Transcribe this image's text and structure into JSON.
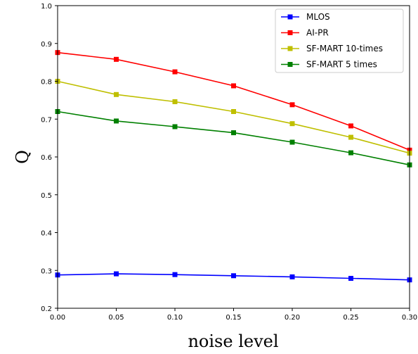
{
  "chart_data": {
    "type": "line",
    "xlabel": "noise level",
    "ylabel": "Q",
    "x": [
      0.0,
      0.05,
      0.1,
      0.15,
      0.2,
      0.25,
      0.3
    ],
    "xlim": [
      0.0,
      0.3
    ],
    "ylim": [
      0.2,
      1.0
    ],
    "x_ticks": [
      "0.00",
      "0.05",
      "0.10",
      "0.15",
      "0.20",
      "0.25",
      "0.30"
    ],
    "y_ticks": [
      "0.2",
      "0.3",
      "0.4",
      "0.5",
      "0.6",
      "0.7",
      "0.8",
      "0.9",
      "1.0"
    ],
    "x_tick_values": [
      0.0,
      0.05,
      0.1,
      0.15,
      0.2,
      0.25,
      0.3
    ],
    "y_tick_values": [
      0.2,
      0.3,
      0.4,
      0.5,
      0.6,
      0.7,
      0.8,
      0.9,
      1.0
    ],
    "grid": false,
    "legend_position": "top-right",
    "series": [
      {
        "name": "MLOS",
        "color": "#0000ff",
        "marker": "square",
        "values": [
          0.288,
          0.291,
          0.289,
          0.286,
          0.283,
          0.279,
          0.275
        ]
      },
      {
        "name": "AI-PR",
        "color": "#ff0000",
        "marker": "square",
        "values": [
          0.876,
          0.858,
          0.825,
          0.788,
          0.738,
          0.682,
          0.618
        ]
      },
      {
        "name": "SF-MART 10-times",
        "color": "#bfbf00",
        "marker": "square",
        "values": [
          0.8,
          0.765,
          0.746,
          0.72,
          0.688,
          0.652,
          0.61
        ]
      },
      {
        "name": "SF-MART 5 times",
        "color": "#008000",
        "marker": "square",
        "values": [
          0.72,
          0.695,
          0.68,
          0.664,
          0.639,
          0.611,
          0.579
        ]
      }
    ]
  }
}
